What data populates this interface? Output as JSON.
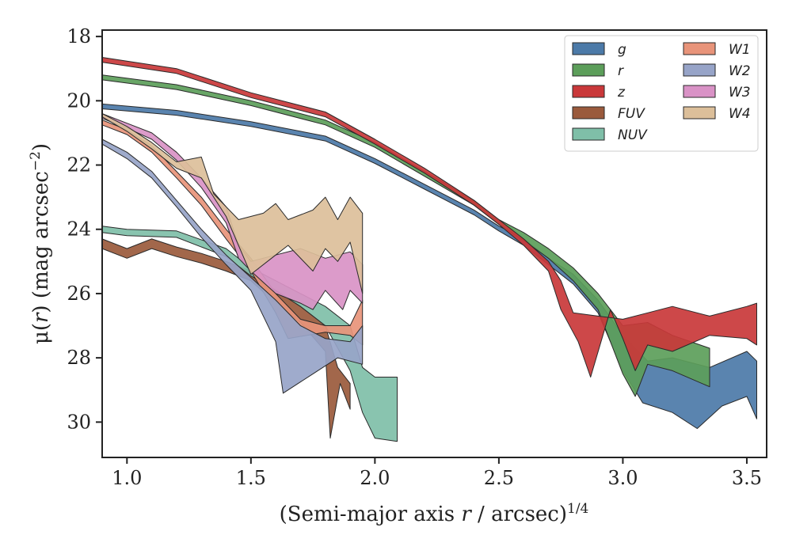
{
  "chart_data": {
    "type": "area",
    "xlabel_parts": {
      "pre": "(Semi-major axis ",
      "var": "r",
      "post": " / arcsec)",
      "sup": "1/4"
    },
    "ylabel_parts": {
      "pre": "μ(",
      "var": "r",
      "post": ") (mag arcsec",
      "sup": "−2",
      "end": ")"
    },
    "xlim": [
      0.9,
      3.58
    ],
    "ylim": [
      31.1,
      17.8
    ],
    "y_inverted": true,
    "xticks": [
      1.0,
      1.5,
      2.0,
      2.5,
      3.0,
      3.5
    ],
    "xtick_labels": [
      "1.0",
      "1.5",
      "2.0",
      "2.5",
      "3.0",
      "3.5"
    ],
    "yticks": [
      18,
      20,
      22,
      24,
      26,
      28,
      30
    ],
    "ytick_labels": [
      "18",
      "20",
      "22",
      "24",
      "26",
      "28",
      "30"
    ],
    "grid": false,
    "legend": {
      "placement": "top-right",
      "columns": 2
    },
    "series": [
      {
        "name": "g",
        "color": "#4c7aa8",
        "upper": [
          [
            0.9,
            20.1
          ],
          [
            1.2,
            20.3
          ],
          [
            1.5,
            20.65
          ],
          [
            1.8,
            21.1
          ],
          [
            2.0,
            21.8
          ],
          [
            2.2,
            22.6
          ],
          [
            2.4,
            23.4
          ],
          [
            2.5,
            23.9
          ],
          [
            2.6,
            24.3
          ],
          [
            2.7,
            24.9
          ],
          [
            2.8,
            25.4
          ],
          [
            2.9,
            26.2
          ],
          [
            3.0,
            27.3
          ],
          [
            3.1,
            28.1
          ],
          [
            3.2,
            28.0
          ],
          [
            3.35,
            28.3
          ],
          [
            3.5,
            27.8
          ],
          [
            3.54,
            28.1
          ]
        ],
        "lower": [
          [
            0.9,
            20.25
          ],
          [
            1.2,
            20.45
          ],
          [
            1.5,
            20.8
          ],
          [
            1.8,
            21.25
          ],
          [
            2.0,
            21.95
          ],
          [
            2.2,
            22.75
          ],
          [
            2.4,
            23.55
          ],
          [
            2.5,
            24.05
          ],
          [
            2.6,
            24.5
          ],
          [
            2.7,
            25.1
          ],
          [
            2.8,
            25.7
          ],
          [
            2.9,
            26.6
          ],
          [
            3.0,
            28.4
          ],
          [
            3.08,
            29.4
          ],
          [
            3.2,
            29.7
          ],
          [
            3.3,
            30.2
          ],
          [
            3.4,
            29.5
          ],
          [
            3.5,
            29.2
          ],
          [
            3.54,
            29.9
          ]
        ]
      },
      {
        "name": "r",
        "color": "#5c9e5a",
        "upper": [
          [
            0.9,
            19.2
          ],
          [
            1.2,
            19.5
          ],
          [
            1.5,
            20.0
          ],
          [
            1.8,
            20.6
          ],
          [
            2.0,
            21.3
          ],
          [
            2.2,
            22.2
          ],
          [
            2.4,
            23.1
          ],
          [
            2.5,
            23.7
          ],
          [
            2.6,
            24.1
          ],
          [
            2.7,
            24.6
          ],
          [
            2.8,
            25.2
          ],
          [
            2.9,
            26.0
          ],
          [
            3.0,
            27.0
          ],
          [
            3.1,
            26.9
          ],
          [
            3.2,
            27.3
          ],
          [
            3.35,
            27.7
          ]
        ],
        "lower": [
          [
            0.9,
            19.35
          ],
          [
            1.2,
            19.65
          ],
          [
            1.5,
            20.15
          ],
          [
            1.8,
            20.75
          ],
          [
            2.0,
            21.45
          ],
          [
            2.2,
            22.35
          ],
          [
            2.4,
            23.25
          ],
          [
            2.5,
            23.85
          ],
          [
            2.6,
            24.35
          ],
          [
            2.7,
            24.9
          ],
          [
            2.8,
            25.6
          ],
          [
            2.9,
            26.5
          ],
          [
            3.0,
            28.5
          ],
          [
            3.05,
            29.2
          ],
          [
            3.1,
            28.2
          ],
          [
            3.2,
            28.4
          ],
          [
            3.35,
            28.9
          ]
        ]
      },
      {
        "name": "z",
        "color": "#c9383a",
        "upper": [
          [
            0.9,
            18.65
          ],
          [
            1.2,
            19.0
          ],
          [
            1.5,
            19.75
          ],
          [
            1.8,
            20.35
          ],
          [
            2.0,
            21.2
          ],
          [
            2.2,
            22.1
          ],
          [
            2.4,
            23.1
          ],
          [
            2.5,
            23.7
          ],
          [
            2.6,
            24.3
          ],
          [
            2.7,
            25.0
          ],
          [
            2.75,
            25.6
          ],
          [
            2.8,
            26.6
          ],
          [
            2.9,
            26.7
          ],
          [
            3.0,
            26.8
          ],
          [
            3.1,
            26.6
          ],
          [
            3.2,
            26.4
          ],
          [
            3.35,
            26.7
          ],
          [
            3.5,
            26.4
          ],
          [
            3.54,
            26.3
          ]
        ],
        "lower": [
          [
            0.9,
            18.8
          ],
          [
            1.2,
            19.15
          ],
          [
            1.5,
            19.9
          ],
          [
            1.8,
            20.5
          ],
          [
            2.0,
            21.35
          ],
          [
            2.2,
            22.25
          ],
          [
            2.4,
            23.25
          ],
          [
            2.5,
            23.85
          ],
          [
            2.6,
            24.5
          ],
          [
            2.7,
            25.3
          ],
          [
            2.75,
            26.5
          ],
          [
            2.82,
            27.5
          ],
          [
            2.87,
            28.6
          ],
          [
            2.95,
            26.5
          ],
          [
            3.0,
            27.4
          ],
          [
            3.05,
            28.4
          ],
          [
            3.1,
            27.6
          ],
          [
            3.2,
            27.8
          ],
          [
            3.35,
            27.3
          ],
          [
            3.5,
            27.4
          ],
          [
            3.54,
            27.6
          ]
        ]
      },
      {
        "name": "FUV",
        "color": "#9a5a3c",
        "upper": [
          [
            0.9,
            24.3
          ],
          [
            1.0,
            24.6
          ],
          [
            1.1,
            24.3
          ],
          [
            1.2,
            24.55
          ],
          [
            1.3,
            24.75
          ],
          [
            1.4,
            25.0
          ],
          [
            1.5,
            25.3
          ],
          [
            1.6,
            25.9
          ],
          [
            1.7,
            26.4
          ],
          [
            1.8,
            27.0
          ],
          [
            1.85,
            28.3
          ],
          [
            1.9,
            28.8
          ]
        ],
        "lower": [
          [
            0.9,
            24.6
          ],
          [
            1.0,
            24.9
          ],
          [
            1.1,
            24.6
          ],
          [
            1.2,
            24.85
          ],
          [
            1.3,
            25.05
          ],
          [
            1.4,
            25.3
          ],
          [
            1.5,
            25.6
          ],
          [
            1.6,
            26.3
          ],
          [
            1.7,
            26.9
          ],
          [
            1.8,
            27.8
          ],
          [
            1.82,
            30.5
          ],
          [
            1.86,
            28.8
          ],
          [
            1.9,
            29.6
          ]
        ]
      },
      {
        "name": "NUV",
        "color": "#7fbfa8",
        "upper": [
          [
            0.9,
            23.9
          ],
          [
            1.0,
            24.0
          ],
          [
            1.2,
            24.05
          ],
          [
            1.4,
            24.6
          ],
          [
            1.5,
            25.2
          ],
          [
            1.6,
            25.6
          ],
          [
            1.7,
            26.0
          ],
          [
            1.8,
            26.4
          ],
          [
            1.9,
            27.0
          ],
          [
            1.95,
            28.3
          ],
          [
            2.0,
            28.6
          ],
          [
            2.09,
            28.6
          ]
        ],
        "lower": [
          [
            0.9,
            24.1
          ],
          [
            1.0,
            24.2
          ],
          [
            1.2,
            24.25
          ],
          [
            1.4,
            24.85
          ],
          [
            1.5,
            25.45
          ],
          [
            1.6,
            25.9
          ],
          [
            1.7,
            26.4
          ],
          [
            1.8,
            27.0
          ],
          [
            1.9,
            28.4
          ],
          [
            1.95,
            29.7
          ],
          [
            2.0,
            30.5
          ],
          [
            2.09,
            30.6
          ]
        ]
      },
      {
        "name": "W1",
        "color": "#e8947a",
        "upper": [
          [
            0.9,
            20.6
          ],
          [
            1.0,
            20.9
          ],
          [
            1.1,
            21.4
          ],
          [
            1.2,
            22.2
          ],
          [
            1.3,
            23.0
          ],
          [
            1.4,
            24.0
          ],
          [
            1.5,
            24.9
          ],
          [
            1.6,
            26.0
          ],
          [
            1.7,
            26.8
          ],
          [
            1.8,
            27.0
          ],
          [
            1.9,
            27.0
          ],
          [
            1.95,
            26.2
          ]
        ],
        "lower": [
          [
            0.9,
            20.75
          ],
          [
            1.0,
            21.05
          ],
          [
            1.1,
            21.6
          ],
          [
            1.2,
            22.4
          ],
          [
            1.3,
            23.25
          ],
          [
            1.4,
            24.3
          ],
          [
            1.5,
            25.3
          ],
          [
            1.6,
            26.6
          ],
          [
            1.65,
            27.4
          ],
          [
            1.8,
            27.2
          ],
          [
            1.9,
            27.3
          ],
          [
            1.95,
            27.6
          ]
        ]
      },
      {
        "name": "W2",
        "color": "#97a4c8",
        "upper": [
          [
            0.9,
            21.2
          ],
          [
            1.0,
            21.6
          ],
          [
            1.1,
            22.2
          ],
          [
            1.2,
            23.1
          ],
          [
            1.3,
            24.0
          ],
          [
            1.4,
            24.8
          ],
          [
            1.5,
            25.5
          ],
          [
            1.6,
            26.2
          ],
          [
            1.7,
            27.0
          ],
          [
            1.8,
            27.4
          ],
          [
            1.9,
            27.5
          ],
          [
            1.95,
            27.0
          ]
        ],
        "lower": [
          [
            0.9,
            21.35
          ],
          [
            1.0,
            21.8
          ],
          [
            1.1,
            22.4
          ],
          [
            1.2,
            23.3
          ],
          [
            1.3,
            24.25
          ],
          [
            1.4,
            25.1
          ],
          [
            1.5,
            25.9
          ],
          [
            1.6,
            27.5
          ],
          [
            1.63,
            29.1
          ],
          [
            1.75,
            28.5
          ],
          [
            1.85,
            28.0
          ],
          [
            1.95,
            28.2
          ]
        ]
      },
      {
        "name": "W3",
        "color": "#d992c6",
        "upper": [
          [
            0.9,
            20.4
          ],
          [
            1.0,
            20.7
          ],
          [
            1.1,
            21.0
          ],
          [
            1.2,
            21.6
          ],
          [
            1.3,
            22.4
          ],
          [
            1.4,
            23.3
          ],
          [
            1.45,
            24.5
          ],
          [
            1.5,
            25.0
          ],
          [
            1.6,
            24.8
          ],
          [
            1.7,
            24.6
          ],
          [
            1.8,
            24.9
          ],
          [
            1.9,
            24.7
          ],
          [
            1.95,
            25.1
          ]
        ],
        "lower": [
          [
            0.9,
            20.55
          ],
          [
            1.0,
            20.85
          ],
          [
            1.1,
            21.2
          ],
          [
            1.2,
            21.85
          ],
          [
            1.3,
            22.7
          ],
          [
            1.4,
            23.8
          ],
          [
            1.45,
            24.9
          ],
          [
            1.5,
            25.3
          ],
          [
            1.6,
            26.0
          ],
          [
            1.7,
            26.3
          ],
          [
            1.75,
            26.5
          ],
          [
            1.8,
            25.9
          ],
          [
            1.87,
            26.5
          ],
          [
            1.9,
            25.9
          ],
          [
            1.95,
            26.3
          ]
        ]
      },
      {
        "name": "W4",
        "color": "#dcbf9a",
        "upper": [
          [
            0.9,
            20.4
          ],
          [
            1.0,
            20.8
          ],
          [
            1.1,
            21.3
          ],
          [
            1.2,
            21.9
          ],
          [
            1.3,
            21.75
          ],
          [
            1.35,
            22.9
          ],
          [
            1.45,
            23.7
          ],
          [
            1.55,
            23.5
          ],
          [
            1.6,
            23.2
          ],
          [
            1.65,
            23.7
          ],
          [
            1.75,
            23.4
          ],
          [
            1.8,
            23.0
          ],
          [
            1.85,
            23.7
          ],
          [
            1.9,
            23.0
          ],
          [
            1.95,
            23.5
          ]
        ],
        "lower": [
          [
            0.9,
            20.5
          ],
          [
            1.0,
            20.95
          ],
          [
            1.1,
            21.5
          ],
          [
            1.2,
            22.1
          ],
          [
            1.3,
            22.4
          ],
          [
            1.4,
            23.6
          ],
          [
            1.5,
            25.4
          ],
          [
            1.6,
            24.8
          ],
          [
            1.65,
            24.5
          ],
          [
            1.75,
            25.3
          ],
          [
            1.8,
            24.6
          ],
          [
            1.85,
            25.0
          ],
          [
            1.9,
            24.4
          ],
          [
            1.95,
            26.0
          ]
        ]
      }
    ]
  }
}
